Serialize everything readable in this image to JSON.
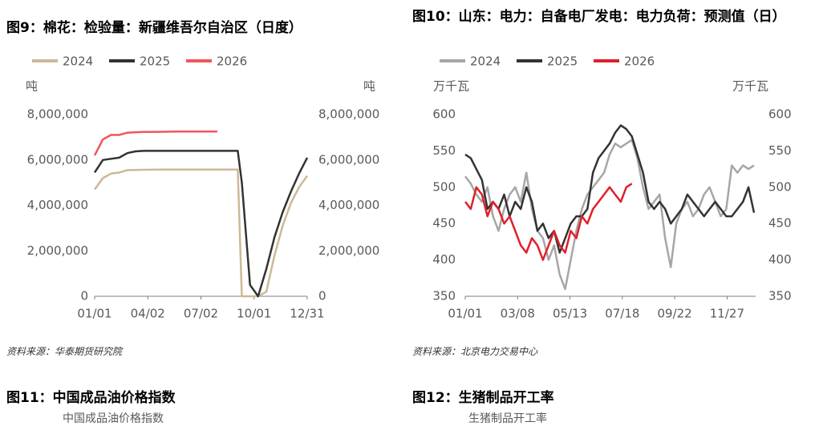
{
  "chart_data": [
    {
      "type": "line",
      "title": "图9：棉花：检验量：新疆维吾尔自治区（日度）",
      "y_unit": "吨",
      "y2_unit": "吨",
      "source": "资料来源：华泰期货研究院",
      "x": [
        0,
        14,
        28,
        42,
        56,
        70,
        84,
        112,
        140,
        168,
        196,
        210,
        238,
        245,
        252,
        266,
        280,
        294,
        308,
        322,
        336,
        350,
        364
      ],
      "xlim": [
        0,
        364
      ],
      "xticks": [
        {
          "value": 0,
          "label": "01/01"
        },
        {
          "value": 91,
          "label": "04/02"
        },
        {
          "value": 182,
          "label": "07/02"
        },
        {
          "value": 273,
          "label": "10/01"
        },
        {
          "value": 364,
          "label": "12/31"
        }
      ],
      "ylim": [
        0,
        8000000
      ],
      "yticks": [
        0,
        {
          "value": 2000000,
          "label": "2,000,000"
        },
        {
          "value": 4000000,
          "label": "4,000,000"
        },
        {
          "value": 6000000,
          "label": "6,000,000"
        },
        {
          "value": 8000000,
          "label": "8,000,000"
        }
      ],
      "y2lim": [
        0,
        8000000
      ],
      "y2ticks": [
        0,
        {
          "value": 2000000,
          "label": "2,000,000"
        },
        {
          "value": 4000000,
          "label": "4,000,000"
        },
        {
          "value": 6000000,
          "label": "6,000,000"
        },
        {
          "value": 8000000,
          "label": "8,000,000"
        }
      ],
      "series": [
        {
          "name": "2024",
          "color": "#cdb898",
          "values": [
            4700000,
            5200000,
            5400000,
            5450000,
            5550000,
            5560000,
            5570000,
            5580000,
            5580000,
            5580000,
            5580000,
            5580000,
            5580000,
            5580000,
            0,
            0,
            0,
            200000,
            1800000,
            3100000,
            4100000,
            4800000,
            5300000
          ]
        },
        {
          "name": "2025",
          "color": "#333333",
          "values": [
            5450000,
            6000000,
            6050000,
            6100000,
            6300000,
            6380000,
            6400000,
            6400000,
            6400000,
            6400000,
            6400000,
            6400000,
            6400000,
            6400000,
            5000000,
            500000,
            0,
            1200000,
            2600000,
            3700000,
            4600000,
            5400000,
            6100000
          ]
        },
        {
          "name": "2026",
          "color": "#f0565a",
          "values": [
            6200000,
            6900000,
            7100000,
            7100000,
            7200000,
            7220000,
            7230000,
            7240000,
            7250000,
            7250000,
            7250000,
            7250000,
            null,
            null,
            null,
            null,
            null,
            null,
            null,
            null,
            null,
            null,
            null
          ]
        }
      ]
    },
    {
      "type": "line",
      "title": "图10：山东：电力：自备电厂发电：电力负荷：预测值（日）",
      "y_unit": "万千瓦",
      "y2_unit": "万千瓦",
      "source": "资料来源：北京电力交易中心",
      "x": [
        0,
        7,
        14,
        21,
        28,
        35,
        42,
        49,
        56,
        63,
        70,
        77,
        84,
        91,
        98,
        105,
        112,
        119,
        126,
        133,
        140,
        147,
        154,
        161,
        168,
        175,
        182,
        189,
        196,
        203,
        210,
        217,
        224,
        231,
        238,
        245,
        252,
        259,
        266,
        273,
        280,
        287,
        294,
        301,
        308,
        315,
        322,
        329,
        336,
        343,
        350,
        357,
        364
      ],
      "xlim": [
        0,
        366
      ],
      "xticks": [
        {
          "value": 0,
          "label": "01/01"
        },
        {
          "value": 66,
          "label": "03/08"
        },
        {
          "value": 132,
          "label": "05/13"
        },
        {
          "value": 198,
          "label": "07/18"
        },
        {
          "value": 264,
          "label": "09/22"
        },
        {
          "value": 330,
          "label": "11/27"
        }
      ],
      "ylim": [
        350,
        600
      ],
      "yticks": [
        350,
        400,
        450,
        500,
        550,
        600
      ],
      "y2lim": [
        350,
        600
      ],
      "y2ticks": [
        350,
        400,
        450,
        500,
        550,
        600
      ],
      "series": [
        {
          "name": "2024",
          "color": "#a6a6a6",
          "values": [
            515,
            505,
            490,
            480,
            500,
            460,
            440,
            470,
            490,
            500,
            480,
            520,
            470,
            440,
            430,
            400,
            420,
            380,
            360,
            400,
            440,
            470,
            490,
            500,
            510,
            520,
            545,
            560,
            555,
            560,
            565,
            540,
            500,
            470,
            480,
            490,
            430,
            390,
            450,
            470,
            480,
            460,
            470,
            490,
            500,
            480,
            460,
            470,
            530,
            520,
            530,
            525,
            530
          ]
        },
        {
          "name": "2025",
          "color": "#333333",
          "values": [
            545,
            540,
            525,
            510,
            470,
            480,
            470,
            490,
            460,
            480,
            470,
            500,
            480,
            440,
            450,
            430,
            440,
            410,
            430,
            450,
            460,
            460,
            470,
            520,
            540,
            550,
            560,
            575,
            585,
            580,
            570,
            545,
            520,
            480,
            470,
            480,
            470,
            450,
            460,
            470,
            490,
            480,
            470,
            460,
            470,
            480,
            470,
            460,
            460,
            470,
            480,
            500,
            465
          ]
        },
        {
          "name": "2026",
          "color": "#e0202a",
          "values": [
            480,
            470,
            500,
            490,
            460,
            480,
            470,
            450,
            460,
            440,
            420,
            410,
            430,
            420,
            400,
            420,
            440,
            420,
            410,
            440,
            430,
            460,
            450,
            470,
            480,
            490,
            500,
            490,
            480,
            500,
            505,
            null,
            null,
            null,
            null,
            null,
            null,
            null,
            null,
            null,
            null,
            null,
            null,
            null,
            null,
            null,
            null,
            null,
            null,
            null,
            null,
            null,
            null
          ]
        }
      ]
    }
  ],
  "figures": [
    {
      "title": "图11：中国成品油价格指数",
      "legend": "中国成品油价格指数"
    },
    {
      "title": "图12：生猪制品开工率",
      "legend": "生猪制品开工率"
    }
  ]
}
